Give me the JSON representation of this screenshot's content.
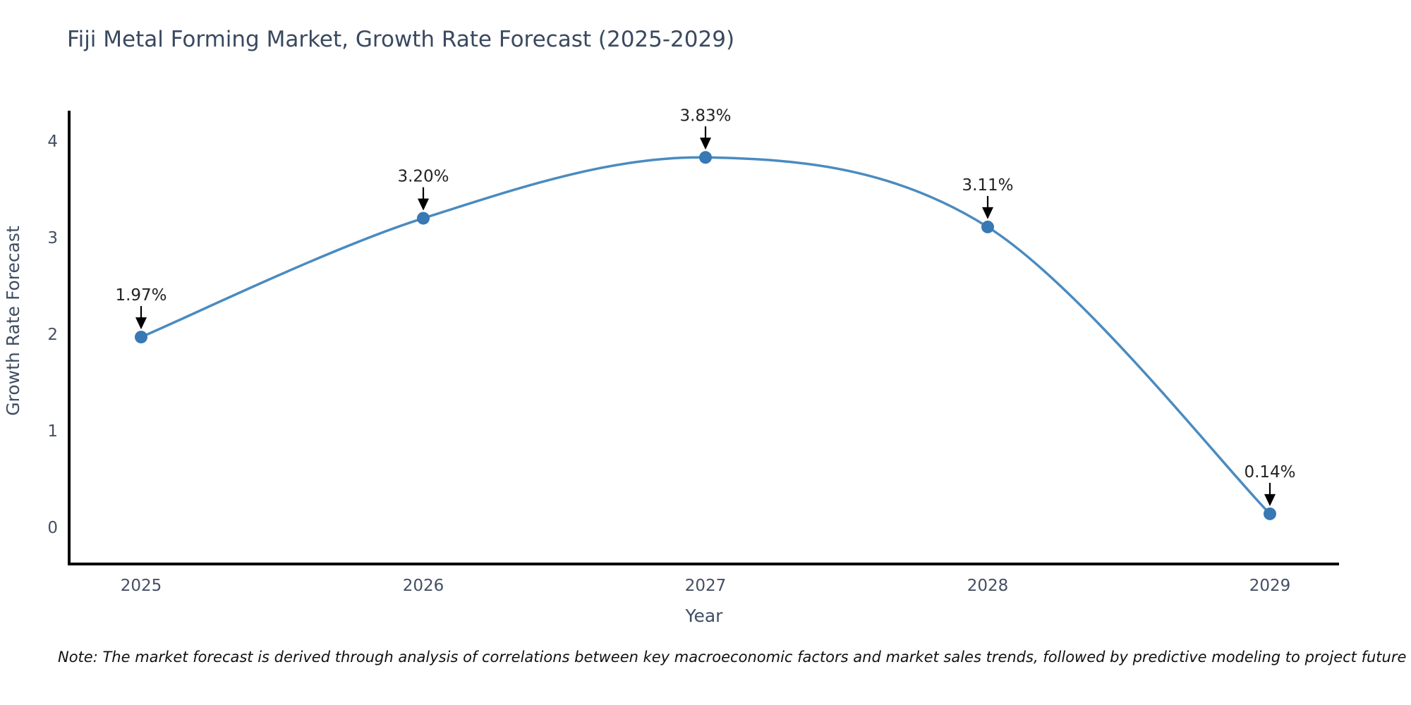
{
  "chart_data": {
    "type": "line",
    "title": "Fiji Metal Forming Market, Growth Rate Forecast (2025-2029)",
    "xlabel": "Year",
    "ylabel": "Growth Rate Forecast",
    "categories": [
      "2025",
      "2026",
      "2027",
      "2028",
      "2029"
    ],
    "series": [
      {
        "name": "Growth Rate Forecast",
        "values": [
          1.97,
          3.2,
          3.83,
          3.11,
          0.14
        ],
        "point_labels": [
          "1.97%",
          "3.20%",
          "3.83%",
          "3.11%",
          "0.14%"
        ]
      }
    ],
    "yticks": [
      0,
      1,
      2,
      3,
      4
    ],
    "ylim": [
      0,
      4.3
    ],
    "grid": false,
    "legend_position": "none",
    "annotation_style": "percentage labels above points with black down arrows",
    "colors": {
      "line": "#4a8bc0",
      "marker": "#3878b4",
      "arrow": "#000000",
      "axis": "#000000",
      "title": "#3a4960",
      "axis_label": "#3f4e63",
      "tick_label": "#444f63",
      "note": "#111111"
    }
  },
  "note": "Note: The market forecast is derived through analysis of correlations between key macroeconomic factors and market sales trends, followed by predictive modeling to project future sales."
}
